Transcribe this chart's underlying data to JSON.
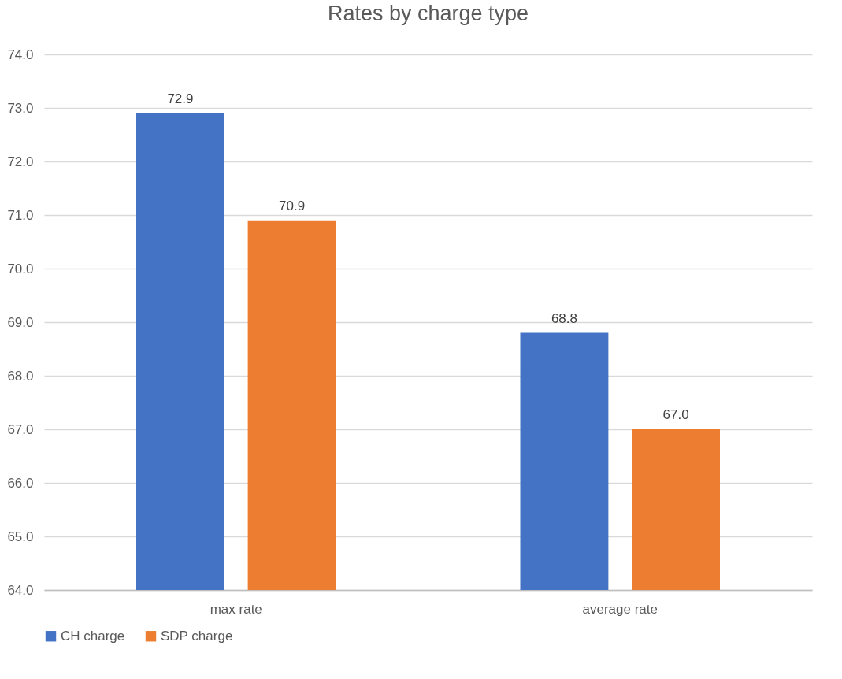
{
  "chart_data": {
    "type": "bar",
    "title": "Rates by charge type",
    "categories": [
      "max rate",
      "average rate"
    ],
    "series": [
      {
        "name": "CH charge",
        "color": "#4472c4",
        "values": [
          72.9,
          68.8
        ],
        "value_labels": [
          "72.9",
          "68.8"
        ]
      },
      {
        "name": "SDP charge",
        "color": "#ed7d31",
        "values": [
          70.9,
          67.0
        ],
        "value_labels": [
          "70.9",
          "67.0"
        ]
      }
    ],
    "ylim": [
      64,
      74
    ],
    "yticks": [
      {
        "value": 64,
        "label": "64.0"
      },
      {
        "value": 65,
        "label": "65.0"
      },
      {
        "value": 66,
        "label": "66.0"
      },
      {
        "value": 67,
        "label": "67.0"
      },
      {
        "value": 68,
        "label": "68.0"
      },
      {
        "value": 69,
        "label": "69.0"
      },
      {
        "value": 70,
        "label": "70.0"
      },
      {
        "value": 71,
        "label": "71.0"
      },
      {
        "value": 72,
        "label": "72.0"
      },
      {
        "value": 73,
        "label": "73.0"
      },
      {
        "value": 74,
        "label": "74.0"
      }
    ],
    "grid": "y",
    "legend": "bottom"
  }
}
